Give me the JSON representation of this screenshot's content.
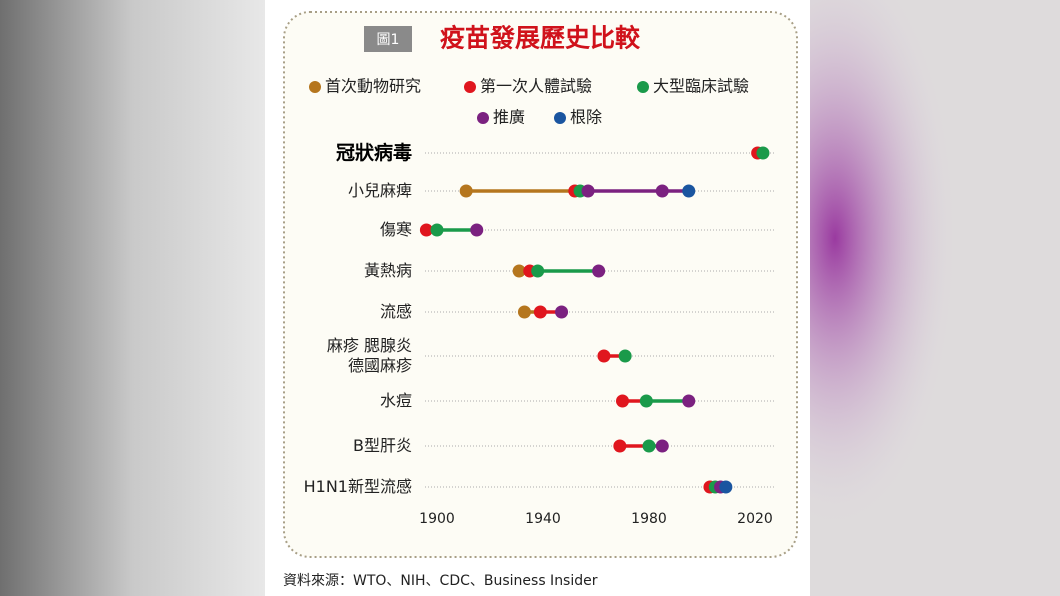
{
  "chart_data": {
    "type": "dot-timeline",
    "badge": "圖1",
    "title": "疫苗發展歷史比較",
    "source": "資料來源：WTO、NIH、CDC、Business Insider",
    "categories": [
      "冠狀病毒",
      "小兒麻痺",
      "傷寒",
      "黃熱病",
      "流感",
      "麻疹 腮腺炎\n德國麻疹",
      "水痘",
      "B型肝炎",
      "H1N1新型流感"
    ],
    "series": [
      {
        "name": "首次動物研究",
        "color": "#b5761e",
        "values": [
          null,
          [
            1911
          ],
          null,
          [
            1931
          ],
          [
            1933
          ],
          null,
          null,
          null,
          null
        ]
      },
      {
        "name": "第一次人體試驗",
        "color": "#e0161e",
        "values": [
          [
            2021
          ],
          [
            1952
          ],
          [
            1896
          ],
          [
            1935
          ],
          [
            1939
          ],
          [
            1963
          ],
          [
            1970
          ],
          [
            1969
          ],
          [
            2003
          ]
        ]
      },
      {
        "name": "大型臨床試驗",
        "color": "#1a9a4a",
        "values": [
          [
            2023
          ],
          [
            1954
          ],
          [
            1900
          ],
          [
            1938
          ],
          null,
          [
            1971
          ],
          [
            1979
          ],
          [
            1980
          ],
          [
            2005
          ]
        ]
      },
      {
        "name": "推廣",
        "color": "#7b2180",
        "values": [
          null,
          [
            1957,
            1985
          ],
          [
            1915
          ],
          [
            1961
          ],
          [
            1947
          ],
          null,
          [
            1995
          ],
          [
            1985
          ],
          [
            2007
          ]
        ]
      },
      {
        "name": "根除",
        "color": "#1a55a0",
        "values": [
          null,
          [
            1995
          ],
          null,
          null,
          null,
          null,
          null,
          null,
          [
            2009
          ]
        ]
      }
    ],
    "xlim": [
      1890,
      2030
    ],
    "xticks": [
      1900,
      1940,
      1980,
      2020
    ],
    "grid": true
  }
}
